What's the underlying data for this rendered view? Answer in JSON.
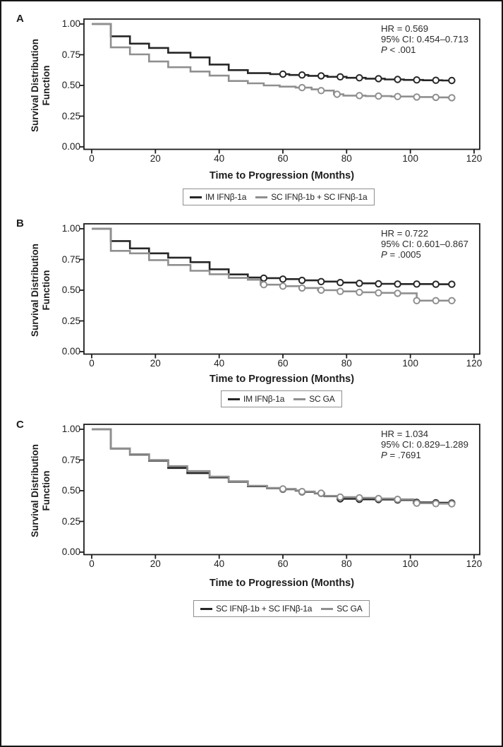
{
  "figure": {
    "background": "#ffffff",
    "border_color": "#161616",
    "axis_color": "#1d1d1d",
    "text_color": "#1d1d1d",
    "series_colors": {
      "dark": "#262626",
      "gray": "#8f8f8f"
    },
    "y_axis_label_lines": [
      "Survival Distribution",
      "Function"
    ],
    "x_axis_label": "Time to Progression (Months)",
    "y_ticks": [
      "1.00",
      "0.75",
      "0.50",
      "0.25",
      "0.00"
    ],
    "x_ticks": [
      "0",
      "20",
      "40",
      "60",
      "80",
      "100",
      "120"
    ]
  },
  "chart_data": [
    {
      "type": "line",
      "subtype": "kaplan-meier-step",
      "panel": "A",
      "xlabel": "Time to Progression (Months)",
      "ylabel": "Survival Distribution Function",
      "xlim": [
        0,
        120
      ],
      "ylim": [
        0.0,
        1.0
      ],
      "x_tick_values": [
        0,
        20,
        40,
        60,
        80,
        100,
        120
      ],
      "y_tick_values": [
        1.0,
        0.75,
        0.5,
        0.25,
        0.0
      ],
      "grid": false,
      "legend_position": "below",
      "stats": {
        "hr": "HR = 0.569",
        "ci": "95% CI: 0.454–0.713",
        "p_label": "P",
        "p_rest": " < .001"
      },
      "series": [
        {
          "name": "IM IFNβ-1a",
          "color_key": "dark",
          "steps": [
            [
              0,
              1.0
            ],
            [
              6,
              0.9
            ],
            [
              12,
              0.84
            ],
            [
              18,
              0.805
            ],
            [
              24,
              0.766
            ],
            [
              31,
              0.728
            ],
            [
              37,
              0.67
            ],
            [
              43,
              0.625
            ],
            [
              49,
              0.6
            ],
            [
              56,
              0.592
            ],
            [
              62,
              0.585
            ],
            [
              68,
              0.578
            ],
            [
              74,
              0.57
            ],
            [
              80,
              0.562
            ],
            [
              86,
              0.555
            ],
            [
              92,
              0.549
            ],
            [
              98,
              0.545
            ],
            [
              104,
              0.542
            ],
            [
              110,
              0.54
            ]
          ],
          "censor_months": [
            60,
            66,
            72,
            78,
            84,
            90,
            96,
            102,
            108,
            113
          ]
        },
        {
          "name": "SC IFNβ-1b + SC IFNβ-1a",
          "color_key": "gray",
          "steps": [
            [
              0,
              1.0
            ],
            [
              6,
              0.81
            ],
            [
              12,
              0.753
            ],
            [
              18,
              0.695
            ],
            [
              24,
              0.648
            ],
            [
              31,
              0.613
            ],
            [
              37,
              0.58
            ],
            [
              43,
              0.536
            ],
            [
              49,
              0.517
            ],
            [
              54,
              0.5
            ],
            [
              59,
              0.49
            ],
            [
              64,
              0.482
            ],
            [
              69,
              0.468
            ],
            [
              72,
              0.458
            ],
            [
              76,
              0.428
            ],
            [
              79,
              0.417
            ],
            [
              86,
              0.413
            ],
            [
              94,
              0.41
            ],
            [
              102,
              0.406
            ],
            [
              108,
              0.403
            ],
            [
              112,
              0.4
            ]
          ],
          "censor_months": [
            66,
            72,
            77,
            84,
            90,
            96,
            102,
            108,
            113
          ]
        }
      ]
    },
    {
      "type": "line",
      "subtype": "kaplan-meier-step",
      "panel": "B",
      "xlabel": "Time to Progression (Months)",
      "ylabel": "Survival Distribution Function",
      "xlim": [
        0,
        120
      ],
      "ylim": [
        0.0,
        1.0
      ],
      "x_tick_values": [
        0,
        20,
        40,
        60,
        80,
        100,
        120
      ],
      "y_tick_values": [
        1.0,
        0.75,
        0.5,
        0.25,
        0.0
      ],
      "grid": false,
      "legend_position": "below",
      "stats": {
        "hr": "HR = 0.722",
        "ci": "95% CI: 0.601–0.867",
        "p_label": "P",
        "p_rest": " = .0005"
      },
      "series": [
        {
          "name": "IM IFNβ-1a",
          "color_key": "dark",
          "steps": [
            [
              0,
              1.0
            ],
            [
              6,
              0.9
            ],
            [
              12,
              0.84
            ],
            [
              18,
              0.8
            ],
            [
              24,
              0.765
            ],
            [
              31,
              0.728
            ],
            [
              37,
              0.67
            ],
            [
              43,
              0.628
            ],
            [
              49,
              0.603
            ],
            [
              54,
              0.598
            ],
            [
              60,
              0.59
            ],
            [
              66,
              0.58
            ],
            [
              72,
              0.57
            ],
            [
              78,
              0.562
            ],
            [
              84,
              0.556
            ],
            [
              90,
              0.552
            ],
            [
              96,
              0.55
            ],
            [
              108,
              0.548
            ]
          ],
          "censor_months": [
            54,
            60,
            66,
            72,
            78,
            84,
            90,
            96,
            102,
            108,
            113
          ]
        },
        {
          "name": "SC GA",
          "color_key": "gray",
          "steps": [
            [
              0,
              1.0
            ],
            [
              6,
              0.82
            ],
            [
              12,
              0.8
            ],
            [
              18,
              0.745
            ],
            [
              24,
              0.705
            ],
            [
              31,
              0.658
            ],
            [
              37,
              0.63
            ],
            [
              43,
              0.6
            ],
            [
              49,
              0.585
            ],
            [
              53,
              0.545
            ],
            [
              60,
              0.533
            ],
            [
              66,
              0.518
            ],
            [
              71,
              0.5
            ],
            [
              78,
              0.49
            ],
            [
              84,
              0.483
            ],
            [
              90,
              0.478
            ],
            [
              96,
              0.475
            ],
            [
              102,
              0.415
            ],
            [
              114,
              0.413
            ]
          ],
          "censor_months": [
            54,
            60,
            66,
            72,
            78,
            84,
            90,
            96,
            102,
            108,
            113
          ]
        }
      ]
    },
    {
      "type": "line",
      "subtype": "kaplan-meier-step",
      "panel": "C",
      "xlabel": "Time to Progression (Months)",
      "ylabel": "Survival Distribution Function",
      "xlim": [
        0,
        120
      ],
      "ylim": [
        0.0,
        1.0
      ],
      "x_tick_values": [
        0,
        20,
        40,
        60,
        80,
        100,
        120
      ],
      "y_tick_values": [
        1.0,
        0.75,
        0.5,
        0.25,
        0.0
      ],
      "grid": false,
      "legend_position": "below",
      "stats": {
        "hr": "HR = 1.034",
        "ci": "95% CI: 0.829–1.289",
        "p_label": "P",
        "p_rest": " = .7691"
      },
      "series": [
        {
          "name": "SC IFNβ-1b + SC IFNβ-1a",
          "color_key": "dark",
          "steps": [
            [
              0,
              1.0
            ],
            [
              6,
              0.843
            ],
            [
              12,
              0.793
            ],
            [
              18,
              0.745
            ],
            [
              24,
              0.685
            ],
            [
              30,
              0.643
            ],
            [
              37,
              0.608
            ],
            [
              43,
              0.573
            ],
            [
              49,
              0.536
            ],
            [
              55,
              0.52
            ],
            [
              60,
              0.512
            ],
            [
              64,
              0.5
            ],
            [
              66,
              0.49
            ],
            [
              70,
              0.478
            ],
            [
              73,
              0.455
            ],
            [
              78,
              0.434
            ],
            [
              84,
              0.43
            ],
            [
              90,
              0.428
            ],
            [
              96,
              0.424
            ],
            [
              102,
              0.405
            ],
            [
              108,
              0.402
            ],
            [
              112,
              0.4
            ]
          ],
          "censor_months": [
            60,
            66,
            72,
            78,
            84,
            90,
            96,
            102,
            108,
            113
          ]
        },
        {
          "name": "SC GA",
          "color_key": "gray",
          "steps": [
            [
              0,
              1.0
            ],
            [
              6,
              0.845
            ],
            [
              12,
              0.797
            ],
            [
              18,
              0.75
            ],
            [
              24,
              0.7
            ],
            [
              30,
              0.66
            ],
            [
              37,
              0.615
            ],
            [
              43,
              0.577
            ],
            [
              49,
              0.54
            ],
            [
              55,
              0.523
            ],
            [
              60,
              0.515
            ],
            [
              64,
              0.503
            ],
            [
              66,
              0.493
            ],
            [
              70,
              0.48
            ],
            [
              73,
              0.458
            ],
            [
              78,
              0.448
            ],
            [
              84,
              0.442
            ],
            [
              90,
              0.436
            ],
            [
              96,
              0.43
            ],
            [
              101,
              0.398
            ],
            [
              108,
              0.395
            ],
            [
              112,
              0.393
            ]
          ],
          "censor_months": [
            60,
            66,
            72,
            78,
            84,
            90,
            96,
            102,
            108,
            113
          ]
        }
      ]
    }
  ]
}
